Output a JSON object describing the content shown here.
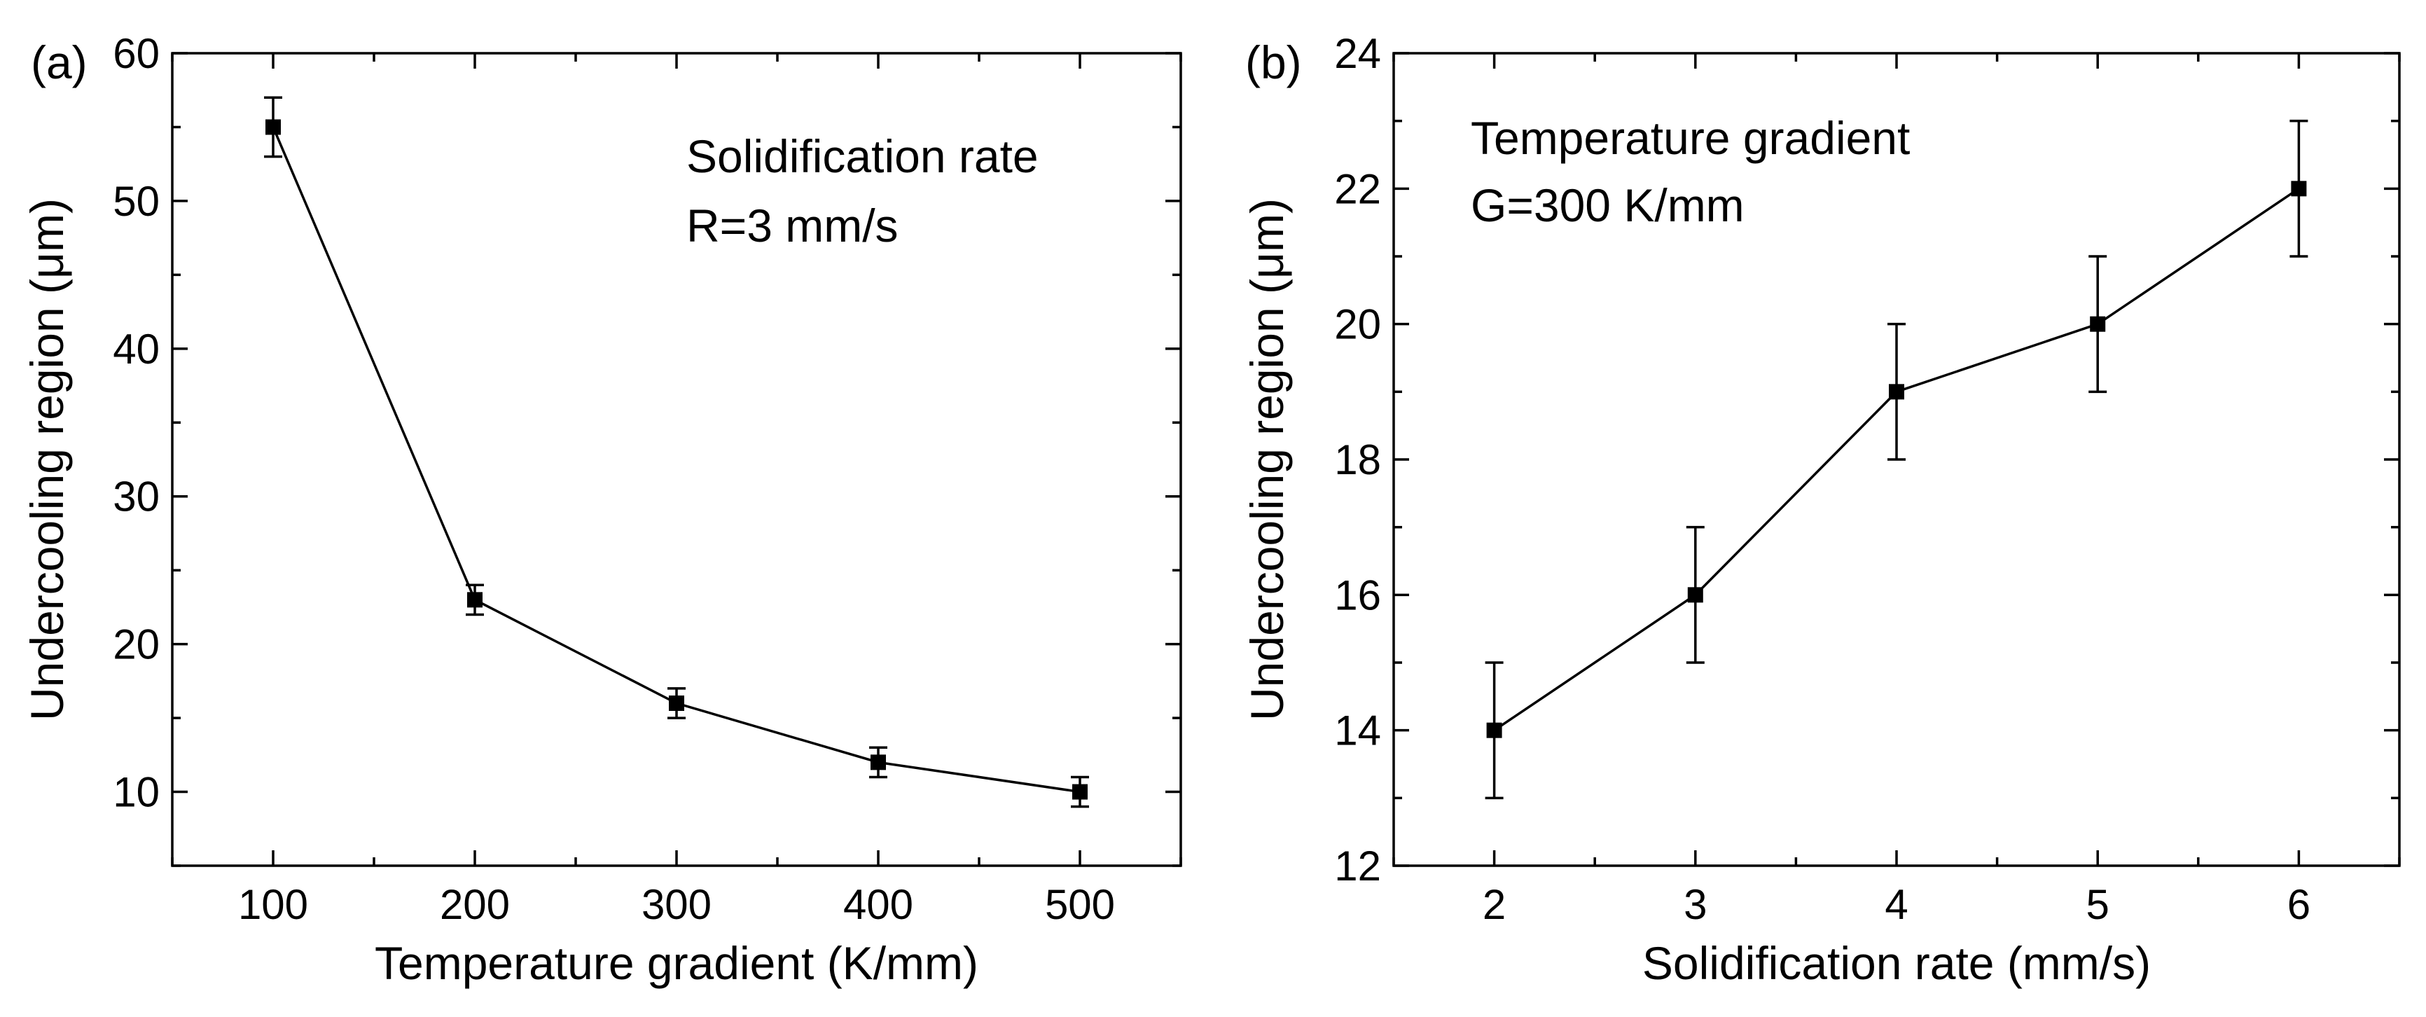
{
  "chart_data": [
    {
      "type": "line",
      "panel_label": "(a)",
      "title": "",
      "xlabel": "Temperature gradient (K/mm)",
      "ylabel": "Undercooling region (μm)",
      "xlim": [
        50,
        550
      ],
      "ylim": [
        5,
        60
      ],
      "xticks": [
        100,
        200,
        300,
        400,
        500
      ],
      "xtick_labels": [
        "100",
        "200",
        "300",
        "400",
        "500"
      ],
      "yticks": [
        10,
        20,
        30,
        40,
        50,
        60
      ],
      "ytick_labels": [
        "10",
        "20",
        "30",
        "40",
        "50",
        "60"
      ],
      "x_minor_step": 50,
      "y_minor_step": 5,
      "grid": false,
      "legend": "none",
      "annotation": {
        "line1": "Solidification rate",
        "line2": "R=3 mm/s",
        "placement": "top-right"
      },
      "series": [
        {
          "name": "Undercooling region",
          "color": "#000000",
          "marker": "square",
          "x": [
            100,
            200,
            300,
            400,
            500
          ],
          "y": [
            55,
            23,
            16,
            12,
            10
          ],
          "yerr": [
            2,
            1,
            1,
            1,
            1
          ]
        }
      ]
    },
    {
      "type": "line",
      "panel_label": "(b)",
      "title": "",
      "xlabel": "Solidification rate (mm/s)",
      "ylabel": "Undercooling region (μm)",
      "xlim": [
        1.5,
        6.5
      ],
      "ylim": [
        12,
        24
      ],
      "xticks": [
        2,
        3,
        4,
        5,
        6
      ],
      "xtick_labels": [
        "2",
        "3",
        "4",
        "5",
        "6"
      ],
      "yticks": [
        12,
        14,
        16,
        18,
        20,
        22,
        24
      ],
      "ytick_labels": [
        "12",
        "14",
        "16",
        "18",
        "20",
        "22",
        "24"
      ],
      "x_minor_step": 0.5,
      "y_minor_step": 1,
      "grid": false,
      "legend": "none",
      "annotation": {
        "line1": "Temperature gradient",
        "line2": "G=300 K/mm",
        "placement": "top-left"
      },
      "series": [
        {
          "name": "Undercooling region",
          "color": "#000000",
          "marker": "square",
          "x": [
            2,
            3,
            4,
            5,
            6
          ],
          "y": [
            14,
            16,
            19,
            20,
            22
          ],
          "yerr": [
            1,
            1,
            1,
            1,
            1
          ]
        }
      ]
    }
  ]
}
